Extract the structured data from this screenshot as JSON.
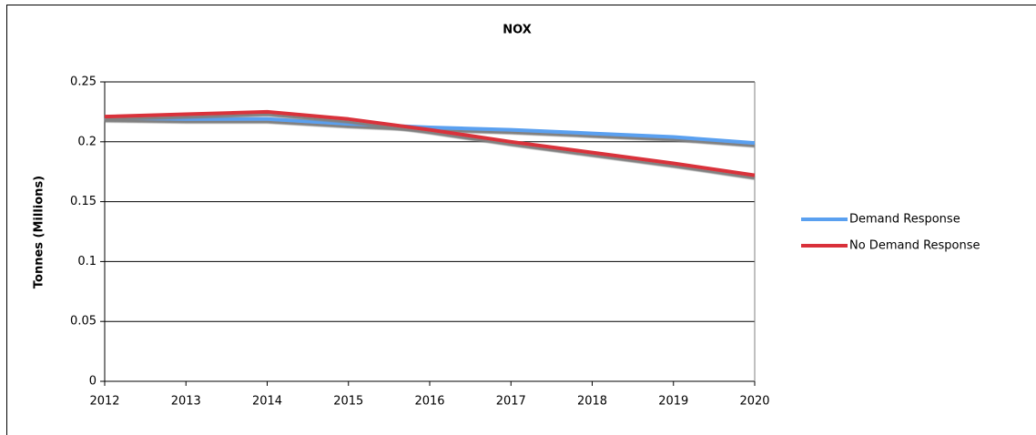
{
  "chart_data": {
    "type": "line",
    "title": "NOX",
    "y_label": "Tonnes (Millions)",
    "categories": [
      "2012",
      "2013",
      "2014",
      "2015",
      "2016",
      "2017",
      "2018",
      "2019",
      "2020"
    ],
    "series": [
      {
        "name": "Demand Response",
        "color": "#5aa0f0",
        "values": [
          0.22,
          0.219,
          0.219,
          0.215,
          0.212,
          0.21,
          0.207,
          0.204,
          0.199
        ]
      },
      {
        "name": "No Demand Response",
        "color": "#d9303a",
        "values": [
          0.221,
          0.223,
          0.225,
          0.219,
          0.21,
          0.2,
          0.191,
          0.182,
          0.172
        ]
      }
    ],
    "ylim": [
      0,
      0.25
    ],
    "yticks": [
      0,
      0.05,
      0.1,
      0.15,
      0.2,
      0.25
    ],
    "grid": true,
    "legend": "right"
  }
}
